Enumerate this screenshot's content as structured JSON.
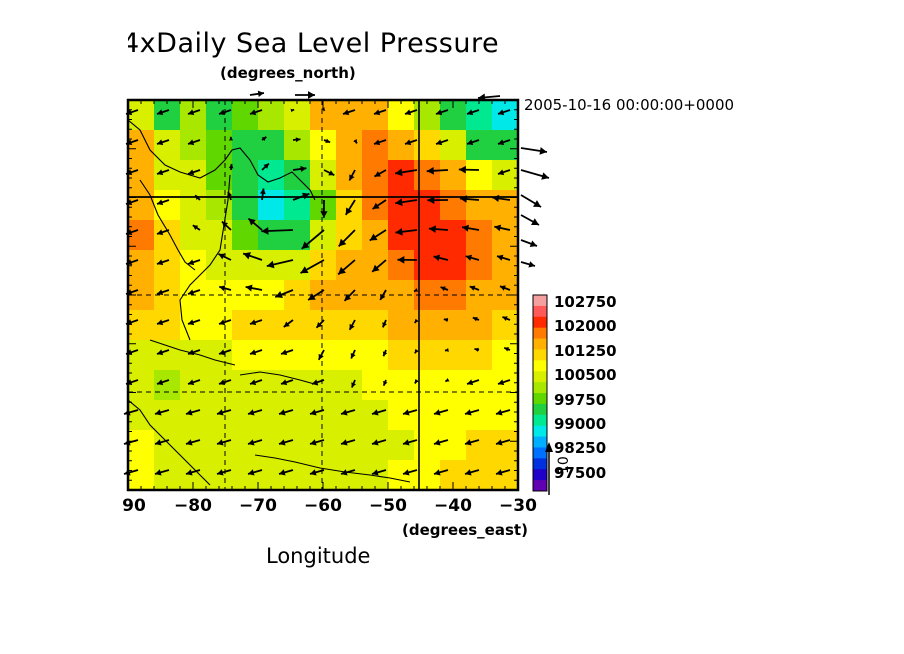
{
  "chart_data": {
    "type": "heatmap",
    "title": "4xDaily Sea Level Pressure",
    "y_unit_label": "(degrees_north)",
    "x_unit_label": "(degrees_east)",
    "xlabel": "Longitude",
    "timestamp": "2005-10-16 00:00:00+0000",
    "x_ticks": [
      "90",
      "−80",
      "−70",
      "−60",
      "−50",
      "−40",
      "−30"
    ],
    "xlim": [
      -90,
      -30
    ],
    "colorbar": {
      "labels": [
        "102750",
        "102000",
        "101250",
        "100500",
        "99750",
        "99000",
        "98250",
        "97500"
      ],
      "colors": [
        "#f4a0a0",
        "#ff5a5a",
        "#ff2a00",
        "#ff7a00",
        "#ffb000",
        "#ffd800",
        "#ffff00",
        "#d8f000",
        "#a8e800",
        "#60d800",
        "#20d040",
        "#00e890",
        "#00e8e8",
        "#00b0ff",
        "#0070ff",
        "#0030e0",
        "#2000c8",
        "#6000b0"
      ],
      "vector_label": "10"
    },
    "field": [
      [
        100500,
        99750,
        100250,
        99750,
        100000,
        100250,
        100750,
        101500,
        101750,
        101500,
        101000,
        100250,
        99750,
        99250,
        99000
      ],
      [
        101750,
        100500,
        100250,
        100000,
        99750,
        99750,
        100250,
        101000,
        101750,
        102000,
        101750,
        101250,
        100500,
        99750,
        99500
      ],
      [
        101500,
        100750,
        100500,
        100000,
        99500,
        99250,
        99750,
        100500,
        101500,
        102000,
        102250,
        102000,
        101500,
        101000,
        100500
      ],
      [
        101750,
        101000,
        100750,
        100250,
        99500,
        99000,
        99250,
        100000,
        101250,
        102000,
        102250,
        102250,
        102000,
        101750,
        101500
      ],
      [
        102000,
        101250,
        100750,
        100500,
        100000,
        99500,
        99750,
        100500,
        101250,
        101750,
        102250,
        102250,
        102250,
        102000,
        101750
      ],
      [
        101750,
        101250,
        101000,
        100750,
        100500,
        100500,
        100750,
        101250,
        101500,
        101750,
        102000,
        102250,
        102250,
        102000,
        101750
      ],
      [
        101500,
        101250,
        101000,
        101000,
        101000,
        101000,
        101250,
        101500,
        101500,
        101500,
        101750,
        102000,
        102000,
        101750,
        101500
      ],
      [
        101250,
        101250,
        101000,
        101000,
        101250,
        101250,
        101250,
        101250,
        101250,
        101250,
        101500,
        101500,
        101500,
        101500,
        101250
      ],
      [
        100750,
        100500,
        100750,
        100750,
        101000,
        101000,
        101000,
        101000,
        101000,
        101000,
        101250,
        101250,
        101250,
        101250,
        101000
      ],
      [
        100500,
        100250,
        100500,
        100750,
        100750,
        100750,
        100750,
        100750,
        100750,
        101000,
        101000,
        101000,
        101000,
        101000,
        101000
      ],
      [
        100750,
        100500,
        100500,
        100500,
        100500,
        100750,
        100750,
        100750,
        100750,
        100750,
        101000,
        101000,
        101000,
        101000,
        101000
      ],
      [
        101000,
        100750,
        100500,
        100500,
        100500,
        100500,
        100500,
        100750,
        100750,
        100750,
        100750,
        101000,
        101000,
        101250,
        101250
      ],
      [
        101000,
        100750,
        100500,
        100500,
        100500,
        100500,
        100500,
        100750,
        100750,
        100750,
        101000,
        101000,
        101250,
        101250,
        101250
      ]
    ]
  }
}
